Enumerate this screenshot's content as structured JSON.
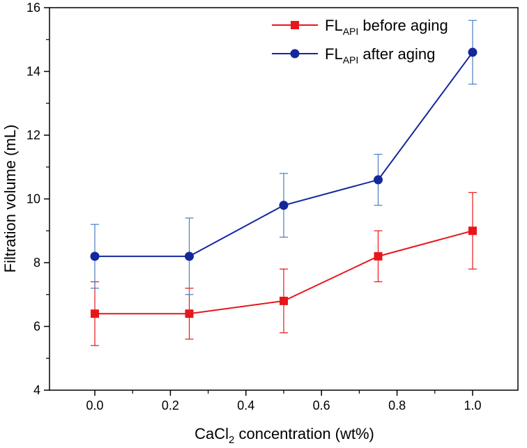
{
  "chart_data": {
    "type": "line",
    "title": "",
    "xlabel": {
      "prefix": "CaCl",
      "subscript": "2",
      "suffix": " concentration (wt%)"
    },
    "ylabel": "Filtration volume (mL)",
    "xlim": [
      -0.12,
      1.12
    ],
    "ylim": [
      4,
      16
    ],
    "xticks": [
      0.0,
      0.2,
      0.4,
      0.6,
      0.8,
      1.0
    ],
    "xtick_labels": [
      "0.0",
      "0.2",
      "0.4",
      "0.6",
      "0.8",
      "1.0"
    ],
    "yticks": [
      4,
      6,
      8,
      10,
      12,
      14,
      16
    ],
    "ytick_labels": [
      "4",
      "6",
      "8",
      "10",
      "12",
      "14",
      "16"
    ],
    "grid": false,
    "legend_position": "top-right",
    "x": [
      0.0,
      0.25,
      0.5,
      0.75,
      1.0
    ],
    "series": [
      {
        "name": "FL_API before aging",
        "label_main": "FL",
        "label_sub": "API",
        "label_rest": " before aging",
        "color": "#e8161b",
        "marker": "square",
        "values": [
          6.4,
          6.4,
          6.8,
          8.2,
          9.0
        ],
        "error_low": [
          5.4,
          5.6,
          5.8,
          7.4,
          7.8
        ],
        "error_high": [
          7.4,
          7.2,
          7.8,
          9.0,
          10.2
        ]
      },
      {
        "name": "FL_API after aging",
        "label_main": "FL",
        "label_sub": "API",
        "label_rest": " after aging",
        "color": "#14279b",
        "error_color": "#4a7cc4",
        "marker": "circle",
        "values": [
          8.2,
          8.2,
          9.8,
          10.6,
          14.6
        ],
        "error_low": [
          7.2,
          7.0,
          8.8,
          9.8,
          13.6
        ],
        "error_high": [
          9.2,
          9.4,
          10.8,
          11.4,
          15.6
        ]
      }
    ]
  }
}
